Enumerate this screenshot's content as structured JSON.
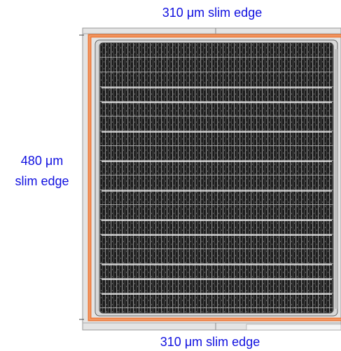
{
  "labels": {
    "top": "310 μm slim edge",
    "left": {
      "lines": [
        "480 μm",
        "slim edge"
      ]
    },
    "bottom": "310 μm slim edge"
  }
}
